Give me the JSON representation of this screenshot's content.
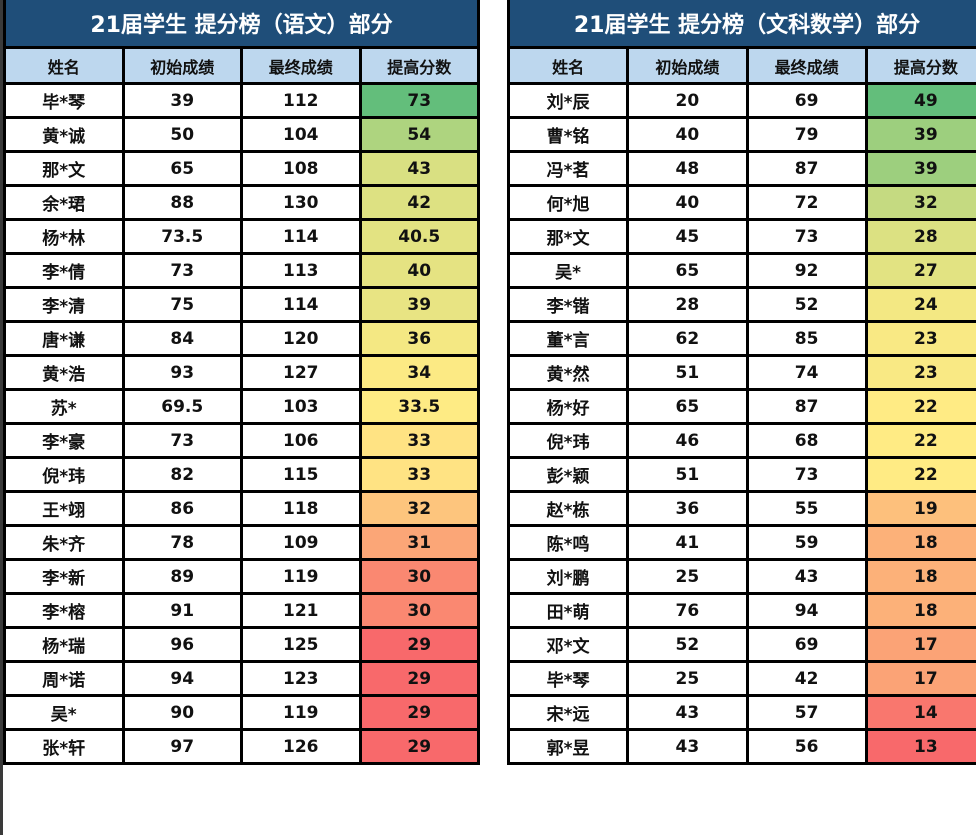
{
  "colors": {
    "title_bg": "#1f4e79",
    "header_bg": "#bdd7ee",
    "scale_low": "#f8696b",
    "scale_mid": "#ffeb84",
    "scale_high": "#63be7b"
  },
  "tables": [
    {
      "title": "21届学生 提分榜（语文）部分",
      "headers": [
        "姓名",
        "初始成绩",
        "最终成绩",
        "提高分数"
      ],
      "rows": [
        [
          "毕*琴",
          "39",
          "112",
          "73"
        ],
        [
          "黄*诚",
          "50",
          "104",
          "54"
        ],
        [
          "那*文",
          "65",
          "108",
          "43"
        ],
        [
          "余*珺",
          "88",
          "130",
          "42"
        ],
        [
          "杨*林",
          "73.5",
          "114",
          "40.5"
        ],
        [
          "李*倩",
          "73",
          "113",
          "40"
        ],
        [
          "李*清",
          "75",
          "114",
          "39"
        ],
        [
          "唐*谦",
          "84",
          "120",
          "36"
        ],
        [
          "黄*浩",
          "93",
          "127",
          "34"
        ],
        [
          "苏*",
          "69.5",
          "103",
          "33.5"
        ],
        [
          "李*豪",
          "73",
          "106",
          "33"
        ],
        [
          "倪*玮",
          "82",
          "115",
          "33"
        ],
        [
          "王*翊",
          "86",
          "118",
          "32"
        ],
        [
          "朱*齐",
          "78",
          "109",
          "31"
        ],
        [
          "李*新",
          "89",
          "119",
          "30"
        ],
        [
          "李*榕",
          "91",
          "121",
          "30"
        ],
        [
          "杨*瑞",
          "96",
          "125",
          "29"
        ],
        [
          "周*诺",
          "94",
          "123",
          "29"
        ],
        [
          "吴*",
          "90",
          "119",
          "29"
        ],
        [
          "张*轩",
          "97",
          "126",
          "29"
        ]
      ]
    },
    {
      "title": "21届学生 提分榜（文科数学）部分",
      "headers": [
        "姓名",
        "初始成绩",
        "最终成绩",
        "提高分数"
      ],
      "rows": [
        [
          "刘*辰",
          "20",
          "69",
          "49"
        ],
        [
          "曹*铭",
          "40",
          "79",
          "39"
        ],
        [
          "冯*茗",
          "48",
          "87",
          "39"
        ],
        [
          "何*旭",
          "40",
          "72",
          "32"
        ],
        [
          "那*文",
          "45",
          "73",
          "28"
        ],
        [
          "吴*",
          "65",
          "92",
          "27"
        ],
        [
          "李*锴",
          "28",
          "52",
          "24"
        ],
        [
          "董*言",
          "62",
          "85",
          "23"
        ],
        [
          "黄*然",
          "51",
          "74",
          "23"
        ],
        [
          "杨*好",
          "65",
          "87",
          "22"
        ],
        [
          "倪*玮",
          "46",
          "68",
          "22"
        ],
        [
          "彭*颖",
          "51",
          "73",
          "22"
        ],
        [
          "赵*栋",
          "36",
          "55",
          "19"
        ],
        [
          "陈*鸣",
          "41",
          "59",
          "18"
        ],
        [
          "刘*鹏",
          "25",
          "43",
          "18"
        ],
        [
          "田*萌",
          "76",
          "94",
          "18"
        ],
        [
          "邓*文",
          "52",
          "69",
          "17"
        ],
        [
          "毕*琴",
          "25",
          "42",
          "17"
        ],
        [
          "宋*远",
          "43",
          "57",
          "14"
        ],
        [
          "郭*昱",
          "43",
          "56",
          "13"
        ]
      ]
    }
  ]
}
